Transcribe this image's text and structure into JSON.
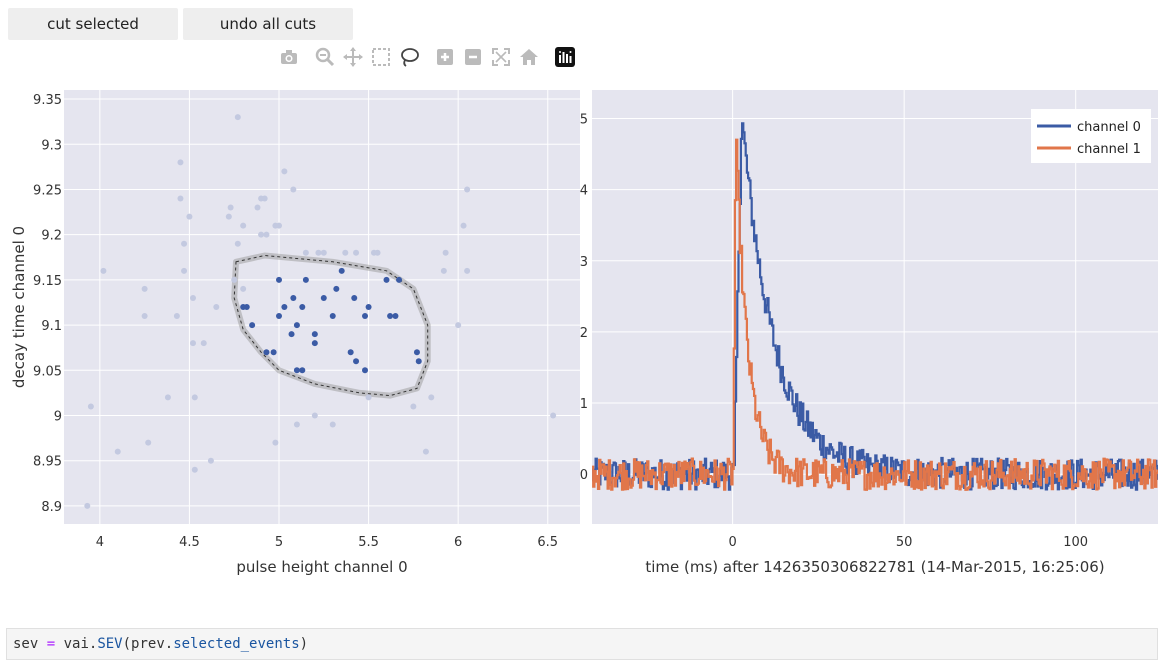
{
  "toolbar": {
    "cut_label": "cut selected",
    "undo_label": "undo all cuts"
  },
  "modebar_icons": [
    "camera-icon",
    "zoom-icon",
    "pan-icon",
    "box-select-icon",
    "lasso-select-icon",
    "zoom-in-icon",
    "zoom-out-icon",
    "autoscale-icon",
    "reset-axes-icon",
    "plotly-logo-icon"
  ],
  "colors": {
    "plot_bg": "#e5e5ef",
    "selected": "#3b5ba5",
    "unselected": "#c3c9e0",
    "channel0": "#3b5ba5",
    "channel1": "#e1764a"
  },
  "code": {
    "var": "sev",
    "op": "=",
    "module": "vai.",
    "func": "SEV",
    "open": "(prev.",
    "attr": "selected_events",
    "close": ")"
  },
  "chart_data": [
    {
      "type": "scatter",
      "xlabel": "pulse height channel 0",
      "ylabel": "decay time channel 0",
      "xlim": [
        3.8,
        6.68
      ],
      "ylim": [
        8.88,
        9.36
      ],
      "xticks": [
        "4",
        "4.5",
        "5",
        "5.5",
        "6",
        "6.5"
      ],
      "yticks": [
        "8.9",
        "8.95",
        "9",
        "9.05",
        "9.1",
        "9.15",
        "9.2",
        "9.25",
        "9.3",
        "9.35"
      ],
      "xtick_values": [
        4,
        4.5,
        5,
        5.5,
        6,
        6.5
      ],
      "ytick_values": [
        8.9,
        8.95,
        9.0,
        9.05,
        9.1,
        9.15,
        9.2,
        9.25,
        9.3,
        9.35
      ],
      "selected_points": [
        [
          5.0,
          9.15
        ],
        [
          5.08,
          9.13
        ],
        [
          5.15,
          9.15
        ],
        [
          5.35,
          9.16
        ],
        [
          5.32,
          9.14
        ],
        [
          5.6,
          9.15
        ],
        [
          5.67,
          9.15
        ],
        [
          4.8,
          9.12
        ],
        [
          4.82,
          9.12
        ],
        [
          5.03,
          9.12
        ],
        [
          5.13,
          9.12
        ],
        [
          5.25,
          9.13
        ],
        [
          5.42,
          9.13
        ],
        [
          5.5,
          9.12
        ],
        [
          5.62,
          9.11
        ],
        [
          4.85,
          9.1
        ],
        [
          5.0,
          9.11
        ],
        [
          5.1,
          9.1
        ],
        [
          5.3,
          9.11
        ],
        [
          5.48,
          9.11
        ],
        [
          5.65,
          9.11
        ],
        [
          5.07,
          9.09
        ],
        [
          5.2,
          9.09
        ],
        [
          5.2,
          9.08
        ],
        [
          4.93,
          9.07
        ],
        [
          4.97,
          9.07
        ],
        [
          5.4,
          9.07
        ],
        [
          5.43,
          9.06
        ],
        [
          5.77,
          9.07
        ],
        [
          5.78,
          9.06
        ],
        [
          5.1,
          9.05
        ],
        [
          5.13,
          9.05
        ],
        [
          5.48,
          9.05
        ]
      ],
      "unselected_points": [
        [
          3.93,
          8.9
        ],
        [
          3.95,
          9.01
        ],
        [
          4.02,
          9.16
        ],
        [
          4.1,
          8.96
        ],
        [
          4.27,
          8.97
        ],
        [
          4.25,
          9.14
        ],
        [
          4.25,
          9.11
        ],
        [
          4.38,
          9.02
        ],
        [
          4.43,
          9.11
        ],
        [
          4.45,
          9.28
        ],
        [
          4.45,
          9.24
        ],
        [
          4.47,
          9.19
        ],
        [
          4.47,
          9.16
        ],
        [
          4.5,
          9.22
        ],
        [
          4.52,
          9.13
        ],
        [
          4.52,
          9.08
        ],
        [
          4.53,
          9.02
        ],
        [
          4.53,
          8.94
        ],
        [
          4.58,
          9.08
        ],
        [
          4.62,
          8.95
        ],
        [
          4.65,
          9.12
        ],
        [
          4.72,
          9.22
        ],
        [
          4.73,
          9.23
        ],
        [
          4.77,
          9.33
        ],
        [
          4.75,
          9.15
        ],
        [
          4.77,
          9.19
        ],
        [
          4.8,
          9.21
        ],
        [
          4.8,
          9.14
        ],
        [
          4.88,
          9.23
        ],
        [
          4.9,
          9.24
        ],
        [
          4.92,
          9.24
        ],
        [
          4.9,
          9.2
        ],
        [
          4.93,
          9.2
        ],
        [
          4.98,
          9.21
        ],
        [
          5.0,
          9.21
        ],
        [
          4.98,
          8.97
        ],
        [
          5.03,
          9.27
        ],
        [
          5.08,
          9.25
        ],
        [
          5.1,
          8.99
        ],
        [
          5.15,
          9.18
        ],
        [
          5.22,
          9.18
        ],
        [
          5.25,
          9.18
        ],
        [
          5.2,
          9.0
        ],
        [
          5.3,
          8.99
        ],
        [
          5.37,
          9.18
        ],
        [
          5.43,
          9.18
        ],
        [
          5.53,
          9.18
        ],
        [
          5.55,
          9.18
        ],
        [
          5.5,
          9.02
        ],
        [
          5.75,
          9.01
        ],
        [
          5.82,
          8.96
        ],
        [
          5.85,
          9.02
        ],
        [
          5.92,
          9.16
        ],
        [
          5.93,
          9.18
        ],
        [
          6.0,
          9.1
        ],
        [
          6.03,
          9.21
        ],
        [
          6.05,
          9.25
        ],
        [
          6.05,
          9.16
        ],
        [
          6.53,
          9.0
        ]
      ]
    },
    {
      "type": "line",
      "xlabel": "time (ms) after 1426350306822781 (14-Mar-2015, 16:25:06)",
      "ylabel": "",
      "xlim": [
        -41,
        124
      ],
      "ylim": [
        -0.7,
        5.4
      ],
      "xticks": [
        "0",
        "50",
        "100"
      ],
      "yticks": [
        "0",
        "1",
        "2",
        "3",
        "4",
        "5"
      ],
      "xtick_values": [
        0,
        50,
        100
      ],
      "ytick_values": [
        0,
        1,
        2,
        3,
        4,
        5
      ],
      "legend_position": "top-right",
      "series": [
        {
          "name": "channel 0",
          "baseline_noise": 0.22,
          "peak_time_ms": 2.5,
          "peak_value": 5.05,
          "decay_tau_ms": 9.5,
          "onset_time_ms": 0.3
        },
        {
          "name": "channel 1",
          "baseline_noise": 0.22,
          "peak_time_ms": 0.8,
          "peak_value": 4.75,
          "decay_tau_ms": 3.5,
          "onset_time_ms": 0.0
        }
      ]
    }
  ]
}
